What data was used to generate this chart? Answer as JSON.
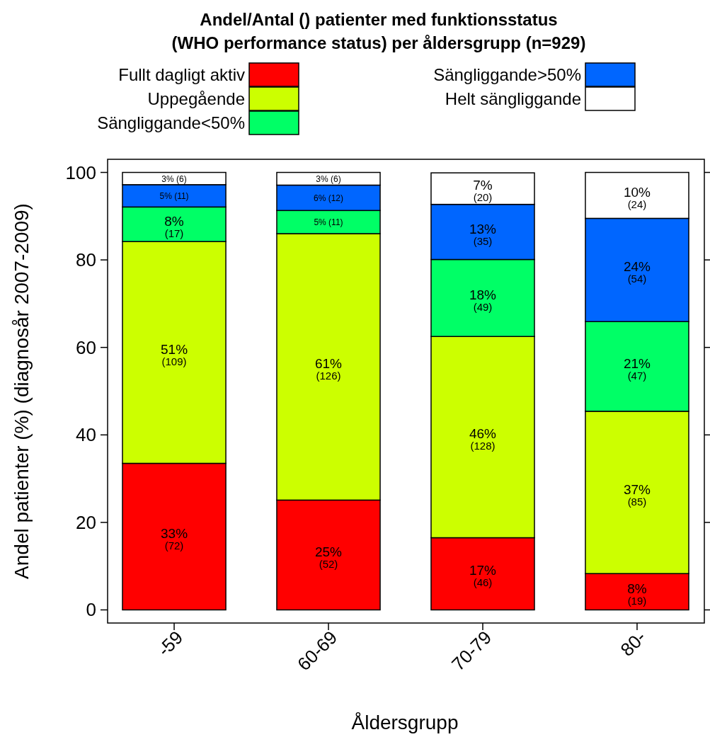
{
  "chart_data": {
    "type": "bar",
    "stacked": true,
    "title": "Andel/Antal () patienter med funktionsstatus\n(WHO performance status) per åldersgrupp (n=929)",
    "xlabel": "Åldersgrupp",
    "ylabel": "Andel patienter (%) (diagnosår 2007-2009)",
    "categories": [
      "-59",
      "60-69",
      "70-79",
      "80-"
    ],
    "series": [
      {
        "name": "Fullt dagligt aktiv",
        "color": "#ff0000",
        "values": [
          33.5,
          25.1,
          16.5,
          8.3
        ],
        "value_labels": [
          "33%\n(72)",
          "25%\n(52)",
          "17%\n(46)",
          "8%\n(19)"
        ]
      },
      {
        "name": "Uppegående",
        "color": "#ccff00",
        "values": [
          50.7,
          60.9,
          46.0,
          37.1
        ],
        "value_labels": [
          "51%\n(109)",
          "61%\n(126)",
          "46%\n(128)",
          "37%\n(85)"
        ]
      },
      {
        "name": "Sängliggande<50%",
        "color": "#00ff66",
        "values": [
          7.9,
          5.3,
          17.6,
          20.5
        ],
        "value_labels": [
          "8%\n(17)",
          "5%\n(11)",
          "18%\n(49)",
          "21%\n(47)"
        ]
      },
      {
        "name": "Sängliggande>50%",
        "color": "#0066ff",
        "values": [
          5.1,
          5.8,
          12.6,
          23.6
        ],
        "value_labels": [
          "5%\n(11)",
          "6%\n(12)",
          "13%\n(35)",
          "24%\n(54)"
        ]
      },
      {
        "name": "Helt sängliggande",
        "color": "#ffffff",
        "values": [
          2.8,
          2.9,
          7.2,
          10.5
        ],
        "value_labels": [
          "3%\n(6)",
          "3%\n(6)",
          "7%\n(20)",
          "10%\n(24)"
        ]
      }
    ],
    "ylim": [
      -3,
      103
    ],
    "yticks": [
      0,
      20,
      40,
      60,
      80,
      100
    ],
    "grid": false,
    "legend": "top"
  }
}
